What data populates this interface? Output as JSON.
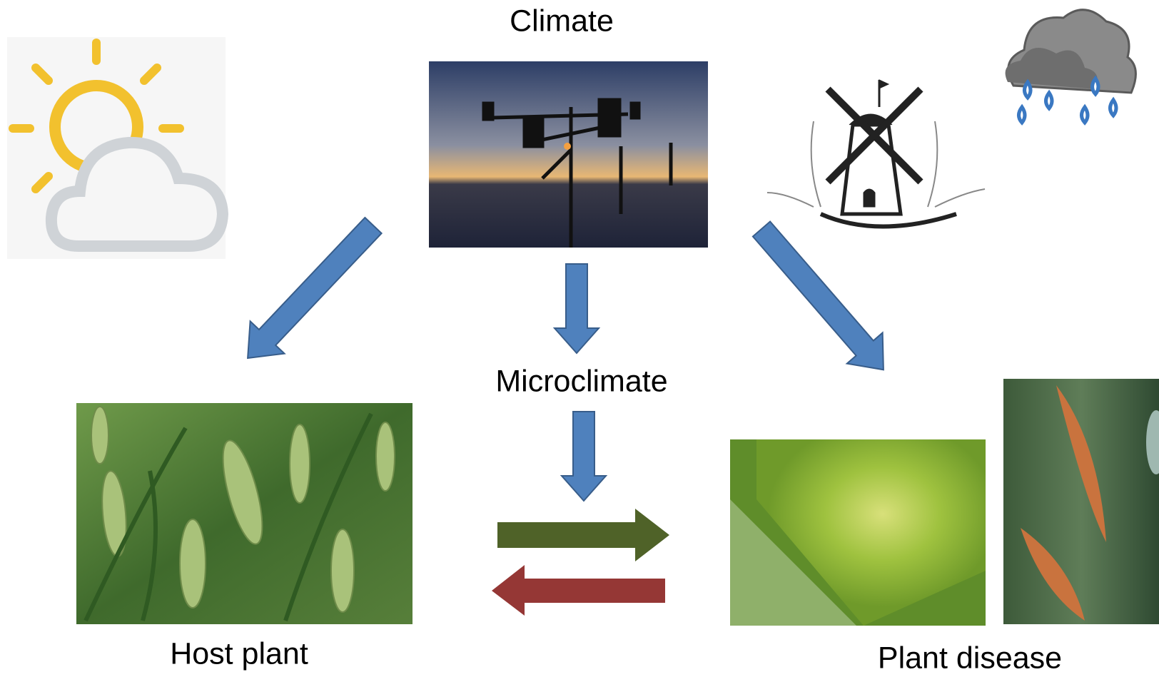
{
  "labels": {
    "climate": "Climate",
    "microclimate": "Microclimate",
    "host_plant": "Host plant",
    "plant_disease": "Plant disease"
  }
}
